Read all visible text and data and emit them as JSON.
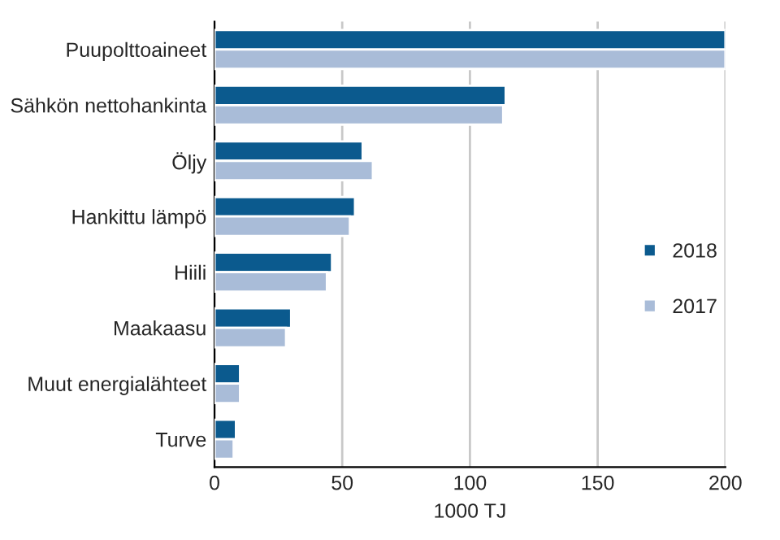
{
  "chart_data": {
    "type": "bar",
    "orientation": "horizontal",
    "xlabel": "1000 TJ",
    "categories": [
      "Puupolttoaineet",
      "Sähkön nettohankinta",
      "Öljy",
      "Hankittu lämpö",
      "Hiili",
      "Maakaasu",
      "Muut energialähteet",
      "Turve"
    ],
    "series": [
      {
        "name": "2018",
        "color": "#0b5a8e",
        "values": [
          200,
          114,
          58,
          55,
          46,
          30,
          10,
          8.4
        ]
      },
      {
        "name": "2017",
        "color": "#a9bcd8",
        "values": [
          200,
          113,
          62,
          53,
          44,
          28,
          10,
          7.5
        ]
      }
    ],
    "xlim": [
      0,
      200
    ],
    "xticks": [
      0,
      50,
      100,
      150,
      200
    ],
    "grid": "x",
    "legend": "right"
  }
}
